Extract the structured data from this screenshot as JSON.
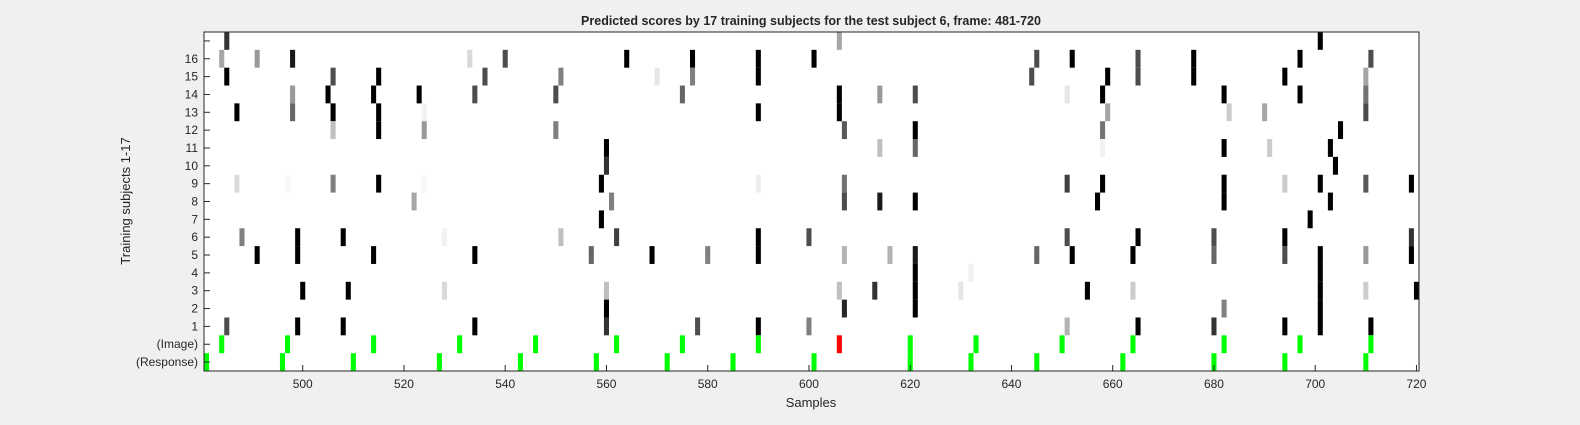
{
  "chart_data": {
    "type": "heatmap",
    "title": "Predicted scores by 17 training subjects for the test subject 6, frame: 481-720",
    "xlabel": "Samples",
    "ylabel": "Training subjects 1-17",
    "xlim": [
      481,
      720
    ],
    "x_ticks": [
      500,
      520,
      540,
      560,
      580,
      600,
      620,
      640,
      660,
      680,
      700,
      720
    ],
    "y_tick_labels": [
      "16",
      "15",
      "14",
      "13",
      "12",
      "11",
      "10",
      "9",
      "8",
      "7",
      "6",
      "5",
      "4",
      "3",
      "2",
      "1",
      "(Image)",
      "(Response)"
    ],
    "colormap": "gray-inverted",
    "highlight_colors": {
      "marker": "#00ff00",
      "test_image": "#ff0000"
    },
    "rows": [
      {
        "label": "",
        "cells": [
          [
            485,
            0.8
          ],
          [
            606,
            0.35
          ],
          [
            701,
            1
          ]
        ]
      },
      {
        "label": "16",
        "cells": [
          [
            484,
            0.35
          ],
          [
            491,
            0.4
          ],
          [
            498,
            0.9
          ],
          [
            533,
            0.15
          ],
          [
            540,
            0.7
          ],
          [
            564,
            1
          ],
          [
            577,
            1
          ],
          [
            590,
            1
          ],
          [
            601,
            1
          ],
          [
            645,
            0.7
          ],
          [
            652,
            1
          ],
          [
            665,
            0.7
          ],
          [
            676,
            1
          ],
          [
            697,
            1
          ],
          [
            711,
            0.7
          ]
        ]
      },
      {
        "label": "15",
        "cells": [
          [
            485,
            1
          ],
          [
            506,
            0.7
          ],
          [
            515,
            1
          ],
          [
            536,
            0.7
          ],
          [
            551,
            0.5
          ],
          [
            570,
            0.1
          ],
          [
            577,
            0.5
          ],
          [
            590,
            1
          ],
          [
            644,
            0.7
          ],
          [
            659,
            1
          ],
          [
            665,
            0.7
          ],
          [
            676,
            1
          ],
          [
            694,
            1
          ],
          [
            710,
            0.35
          ]
        ]
      },
      {
        "label": "14",
        "cells": [
          [
            498,
            0.4
          ],
          [
            505,
            1
          ],
          [
            514,
            1
          ],
          [
            523,
            1
          ],
          [
            534,
            0.7
          ],
          [
            550,
            0.7
          ],
          [
            575,
            0.6
          ],
          [
            606,
            1
          ],
          [
            614,
            0.4
          ],
          [
            621,
            0.7
          ],
          [
            651,
            0.1
          ],
          [
            658,
            1
          ],
          [
            682,
            1
          ],
          [
            697,
            1
          ],
          [
            710,
            0.55
          ]
        ]
      },
      {
        "label": "13",
        "cells": [
          [
            487,
            1
          ],
          [
            498,
            0.6
          ],
          [
            506,
            1
          ],
          [
            515,
            1
          ],
          [
            524,
            0.05
          ],
          [
            590,
            1
          ],
          [
            606,
            1
          ],
          [
            659,
            0.35
          ],
          [
            683,
            0.2
          ],
          [
            690,
            0.35
          ],
          [
            710,
            0.7
          ]
        ]
      },
      {
        "label": "12",
        "cells": [
          [
            506,
            0.25
          ],
          [
            515,
            1
          ],
          [
            524,
            0.4
          ],
          [
            550,
            0.5
          ],
          [
            607,
            0.65
          ],
          [
            621,
            1
          ],
          [
            658,
            0.55
          ],
          [
            705,
            1
          ]
        ]
      },
      {
        "label": "11",
        "cells": [
          [
            560,
            1
          ],
          [
            614,
            0.25
          ],
          [
            621,
            0.6
          ],
          [
            658,
            0.05
          ],
          [
            682,
            1
          ],
          [
            691,
            0.2
          ],
          [
            703,
            1
          ]
        ]
      },
      {
        "label": "10",
        "cells": [
          [
            560,
            0.8
          ],
          [
            704,
            1
          ]
        ]
      },
      {
        "label": "9",
        "cells": [
          [
            487,
            0.15
          ],
          [
            497,
            0.03
          ],
          [
            506,
            0.5
          ],
          [
            515,
            1
          ],
          [
            524,
            0.03
          ],
          [
            559,
            1
          ],
          [
            590,
            0.07
          ],
          [
            607,
            0.55
          ],
          [
            651,
            0.75
          ],
          [
            658,
            1
          ],
          [
            682,
            1
          ],
          [
            694,
            0.2
          ],
          [
            701,
            1
          ],
          [
            710,
            0.65
          ],
          [
            719,
            1
          ]
        ]
      },
      {
        "label": "8",
        "cells": [
          [
            522,
            0.35
          ],
          [
            561,
            0.5
          ],
          [
            607,
            0.7
          ],
          [
            614,
            0.9
          ],
          [
            621,
            1
          ],
          [
            657,
            1
          ],
          [
            682,
            1
          ],
          [
            703,
            1
          ]
        ]
      },
      {
        "label": "7",
        "cells": [
          [
            559,
            1
          ],
          [
            699,
            1
          ]
        ]
      },
      {
        "label": "6",
        "cells": [
          [
            488,
            0.5
          ],
          [
            499,
            1
          ],
          [
            508,
            1
          ],
          [
            528,
            0.05
          ],
          [
            551,
            0.25
          ],
          [
            562,
            0.75
          ],
          [
            590,
            1
          ],
          [
            600,
            0.7
          ],
          [
            651,
            0.7
          ],
          [
            665,
            1
          ],
          [
            680,
            0.7
          ],
          [
            694,
            1
          ],
          [
            719,
            0.8
          ]
        ]
      },
      {
        "label": "5",
        "cells": [
          [
            491,
            1
          ],
          [
            499,
            1
          ],
          [
            514,
            1
          ],
          [
            534,
            1
          ],
          [
            557,
            0.6
          ],
          [
            569,
            1
          ],
          [
            580,
            0.5
          ],
          [
            590,
            1
          ],
          [
            607,
            0.3
          ],
          [
            616,
            0.3
          ],
          [
            621,
            0.9
          ],
          [
            645,
            0.6
          ],
          [
            652,
            1
          ],
          [
            664,
            1
          ],
          [
            680,
            0.6
          ],
          [
            694,
            0.7
          ],
          [
            701,
            1
          ],
          [
            710,
            0.4
          ],
          [
            719,
            1
          ]
        ]
      },
      {
        "label": "4",
        "cells": [
          [
            621,
            1
          ],
          [
            632,
            0.05
          ],
          [
            701,
            1
          ]
        ]
      },
      {
        "label": "3",
        "cells": [
          [
            500,
            1
          ],
          [
            509,
            1
          ],
          [
            528,
            0.15
          ],
          [
            560,
            0.25
          ],
          [
            606,
            0.25
          ],
          [
            613,
            0.8
          ],
          [
            621,
            1
          ],
          [
            630,
            0.1
          ],
          [
            655,
            1
          ],
          [
            664,
            0.2
          ],
          [
            701,
            1
          ],
          [
            710,
            0.2
          ],
          [
            720,
            1
          ]
        ]
      },
      {
        "label": "2",
        "cells": [
          [
            560,
            1
          ],
          [
            607,
            0.85
          ],
          [
            621,
            1
          ],
          [
            682,
            0.5
          ],
          [
            701,
            1
          ]
        ]
      },
      {
        "label": "1",
        "cells": [
          [
            485,
            0.7
          ],
          [
            499,
            1
          ],
          [
            508,
            1
          ],
          [
            534,
            1
          ],
          [
            560,
            0.8
          ],
          [
            578,
            0.7
          ],
          [
            590,
            1
          ],
          [
            600,
            0.5
          ],
          [
            651,
            0.3
          ],
          [
            665,
            1
          ],
          [
            680,
            0.8
          ],
          [
            694,
            1
          ],
          [
            701,
            1
          ],
          [
            711,
            1
          ]
        ]
      },
      {
        "label": "(Image)",
        "cells": [
          [
            484,
            "marker"
          ],
          [
            497,
            "marker"
          ],
          [
            514,
            "marker"
          ],
          [
            531,
            "marker"
          ],
          [
            546,
            "marker"
          ],
          [
            562,
            "marker"
          ],
          [
            575,
            "marker"
          ],
          [
            590,
            "marker"
          ],
          [
            606,
            "test_image"
          ],
          [
            620,
            "marker"
          ],
          [
            633,
            "marker"
          ],
          [
            650,
            "marker"
          ],
          [
            664,
            "marker"
          ],
          [
            682,
            "marker"
          ],
          [
            697,
            "marker"
          ],
          [
            711,
            "marker"
          ]
        ]
      },
      {
        "label": "(Response)",
        "cells": [
          [
            481,
            "marker"
          ],
          [
            496,
            "marker"
          ],
          [
            510,
            "marker"
          ],
          [
            527,
            "marker"
          ],
          [
            543,
            "marker"
          ],
          [
            558,
            "marker"
          ],
          [
            572,
            "marker"
          ],
          [
            585,
            "marker"
          ],
          [
            601,
            "marker"
          ],
          [
            620,
            "marker"
          ],
          [
            632,
            "marker"
          ],
          [
            645,
            "marker"
          ],
          [
            662,
            "marker"
          ],
          [
            680,
            "marker"
          ],
          [
            694,
            "marker"
          ],
          [
            710,
            "marker"
          ]
        ]
      }
    ]
  }
}
